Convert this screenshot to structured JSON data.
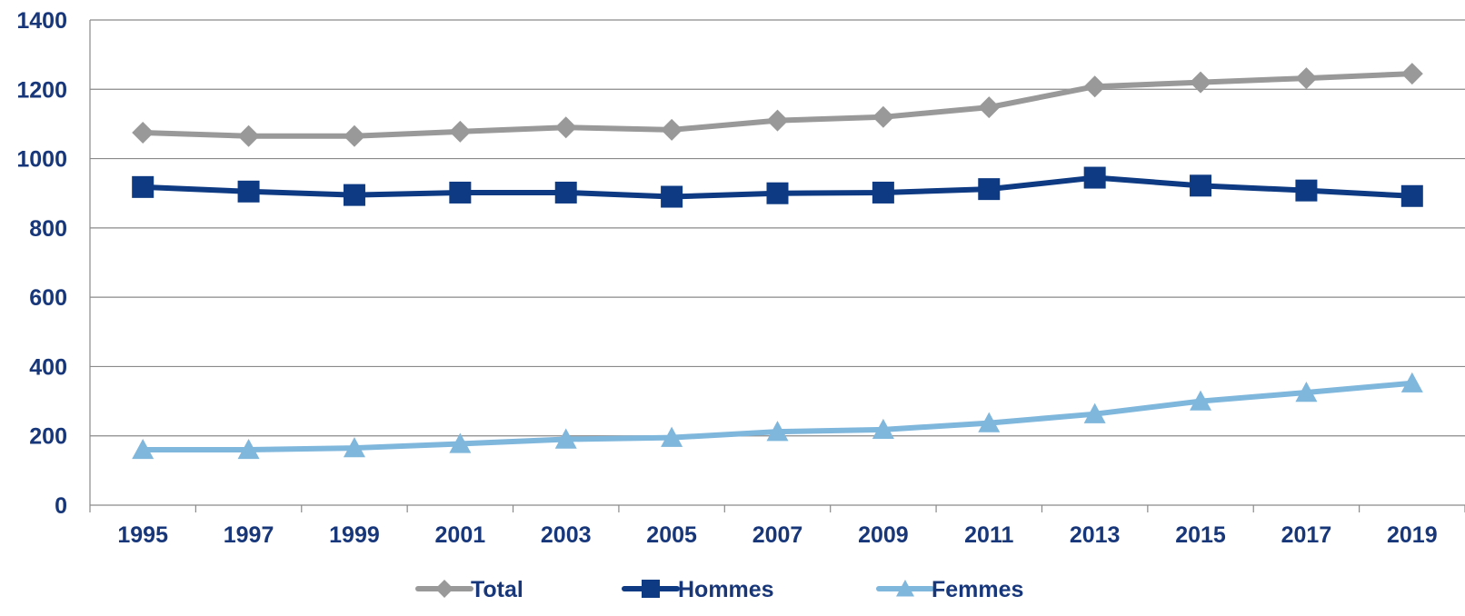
{
  "chart_data": {
    "type": "line",
    "title": "",
    "xlabel": "",
    "ylabel": "",
    "x": [
      "1995",
      "1997",
      "1999",
      "2001",
      "2003",
      "2005",
      "2007",
      "2009",
      "2011",
      "2013",
      "2015",
      "2017",
      "2019"
    ],
    "ylim": [
      0,
      1400
    ],
    "yticks": [
      "0",
      "200",
      "400",
      "600",
      "800",
      "1000",
      "1200",
      "1400"
    ],
    "grid": "horizontal",
    "legend_position": "bottom",
    "series": [
      {
        "name": "Total",
        "color": "#999999",
        "marker": "diamond",
        "values": [
          1075,
          1065,
          1065,
          1078,
          1090,
          1083,
          1110,
          1120,
          1148,
          1208,
          1220,
          1232,
          1245
        ]
      },
      {
        "name": "Hommes",
        "color": "#0d3a82",
        "marker": "square",
        "values": [
          918,
          905,
          895,
          902,
          902,
          890,
          900,
          902,
          912,
          945,
          922,
          908,
          892
        ]
      },
      {
        "name": "Femmes",
        "color": "#7fb6dc",
        "marker": "triangle",
        "values": [
          160,
          160,
          165,
          177,
          190,
          195,
          212,
          218,
          237,
          263,
          300,
          325,
          352
        ]
      }
    ]
  }
}
